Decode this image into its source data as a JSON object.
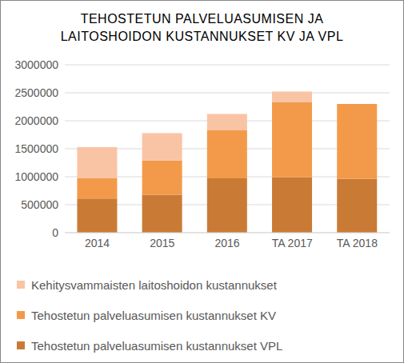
{
  "chart_data": {
    "type": "bar",
    "title": "TEHOSTETUN PALVELUASUMISEN JA LAITOSHOIDON KUSTANNUKSET KV JA VPL",
    "categories": [
      "2014",
      "2015",
      "2016",
      "TA 2017",
      "TA 2018"
    ],
    "series": [
      {
        "name": "Tehostetun palveluasumisen kustannukset VPL",
        "color": "#c97b36",
        "values": [
          610000,
          680000,
          970000,
          990000,
          960000
        ]
      },
      {
        "name": "Tehostetun palveluasumisen kustannukset KV",
        "color": "#f39a4a",
        "values": [
          370000,
          610000,
          860000,
          1340000,
          1340000
        ]
      },
      {
        "name": "Kehitysvammaisten laitoshoidon kustannukset",
        "color": "#f9c4a4",
        "values": [
          550000,
          490000,
          290000,
          190000,
          0
        ]
      }
    ],
    "ylim": [
      0,
      3000000
    ],
    "yticks": [
      0,
      500000,
      1000000,
      1500000,
      2000000,
      2500000,
      3000000
    ],
    "grid": true,
    "stacked": true,
    "legend": "bottom"
  }
}
